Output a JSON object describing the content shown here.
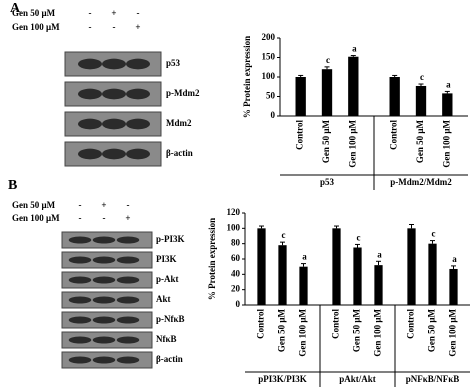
{
  "panel_labels": [
    "A",
    "B"
  ],
  "blots": [
    {
      "treatments": [
        {
          "label": "Gen 50 μM",
          "signs": [
            "-",
            "+",
            "-"
          ]
        },
        {
          "label": "Gen 100 μM",
          "signs": [
            "-",
            "-",
            "+"
          ]
        }
      ],
      "bands": [
        "p53",
        "p-Mdm2",
        "Mdm2",
        "β-actin"
      ]
    },
    {
      "treatments": [
        {
          "label": "Gen 50 μM",
          "signs": [
            "-",
            "+",
            "-"
          ]
        },
        {
          "label": "Gen 100 μM",
          "signs": [
            "-",
            "-",
            "+"
          ]
        }
      ],
      "bands": [
        "p-PI3K",
        "PI3K",
        "p-Akt",
        "Akt",
        "p-NfκB",
        "NfκB",
        "β-actin"
      ]
    }
  ],
  "chart_data": [
    {
      "type": "bar",
      "y_label": "% Protein expression",
      "color": "#000000",
      "ylim": [
        0,
        200
      ],
      "yticks": [
        0,
        50,
        100,
        150,
        200
      ],
      "groups": [
        {
          "name": "p53",
          "categories": [
            "Control",
            "Gen 50 μM",
            "Gen 100 μM"
          ],
          "values": [
            100,
            120,
            152
          ],
          "errors": [
            4,
            6,
            3
          ],
          "annotations": [
            {
              "index": 1,
              "text": "c"
            },
            {
              "index": 2,
              "text": "a"
            }
          ]
        },
        {
          "name": "p-Mdm2/Mdm2",
          "categories": [
            "Control",
            "Gen 50 μM",
            "Gen 100 μM"
          ],
          "values": [
            100,
            77,
            58
          ],
          "errors": [
            4,
            5,
            5
          ],
          "annotations": [
            {
              "index": 1,
              "text": "c"
            },
            {
              "index": 2,
              "text": "a"
            }
          ]
        }
      ]
    },
    {
      "type": "bar",
      "y_label": "% Protein expression",
      "color": "#000000",
      "ylim": [
        0,
        120
      ],
      "yticks": [
        0,
        20,
        40,
        60,
        80,
        100,
        120
      ],
      "groups": [
        {
          "name": "pPI3K/PI3K",
          "categories": [
            "Control",
            "Gen 50 μM",
            "Gen 100 μM"
          ],
          "values": [
            100,
            78,
            50
          ],
          "errors": [
            3,
            4,
            4
          ],
          "annotations": [
            {
              "index": 1,
              "text": "c"
            },
            {
              "index": 2,
              "text": "a"
            }
          ]
        },
        {
          "name": "pAkt/Akt",
          "categories": [
            "Control",
            "Gen 50 μM",
            "Gen 100 μM"
          ],
          "values": [
            100,
            75,
            52
          ],
          "errors": [
            3,
            4,
            5
          ],
          "annotations": [
            {
              "index": 1,
              "text": "c"
            },
            {
              "index": 2,
              "text": "a"
            }
          ]
        },
        {
          "name": "pNFκB/NFκB",
          "categories": [
            "Control",
            "Gen 50 μM",
            "Gen 100 μM"
          ],
          "values": [
            100,
            80,
            47
          ],
          "errors": [
            5,
            4,
            4
          ],
          "annotations": [
            {
              "index": 1,
              "text": "c"
            },
            {
              "index": 2,
              "text": "a"
            }
          ]
        }
      ]
    }
  ]
}
